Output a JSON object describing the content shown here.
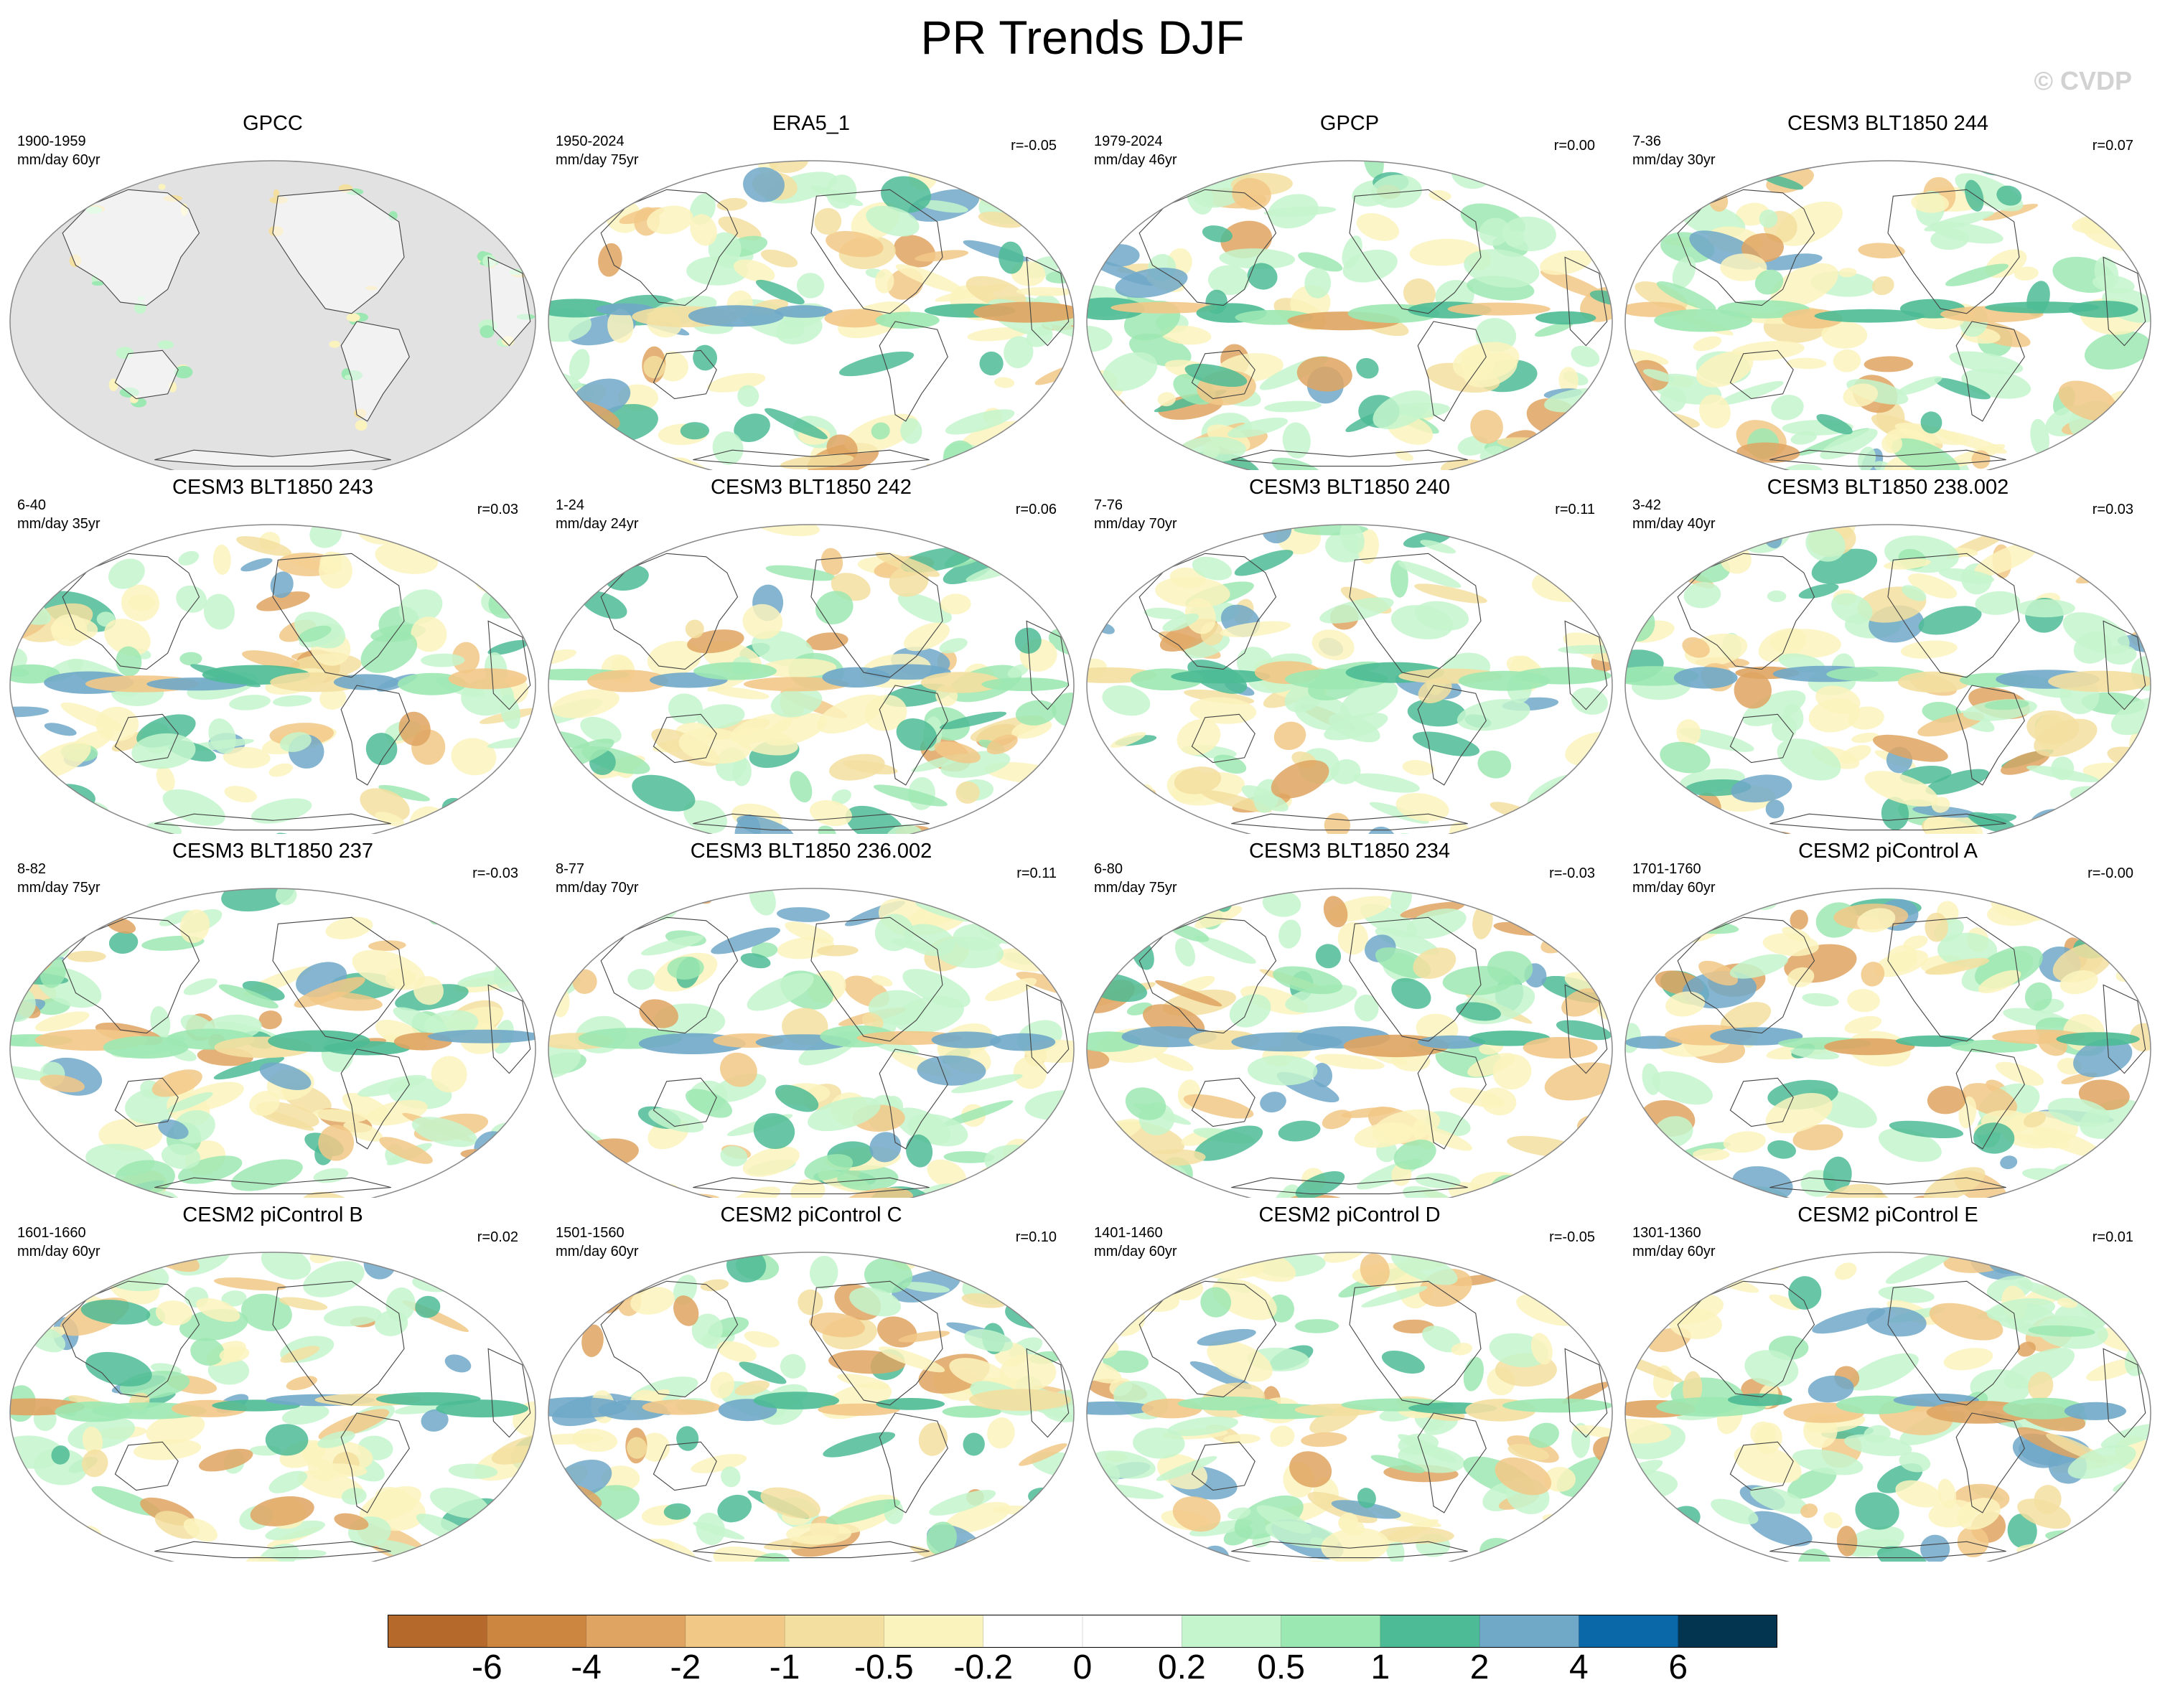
{
  "title": "PR Trends DJF",
  "watermark": "© CVDP",
  "panels": [
    {
      "title": "GPCC",
      "period": "1900-1959",
      "units": "mm/day 60yr",
      "corr": ""
    },
    {
      "title": "ERA5_1",
      "period": "1950-2024",
      "units": "mm/day 75yr",
      "corr": "r=-0.05"
    },
    {
      "title": "GPCP",
      "period": "1979-2024",
      "units": "mm/day 46yr",
      "corr": "r=0.00"
    },
    {
      "title": "CESM3 BLT1850 244",
      "period": "7-36",
      "units": "mm/day 30yr",
      "corr": "r=0.07"
    },
    {
      "title": "CESM3 BLT1850 243",
      "period": "6-40",
      "units": "mm/day 35yr",
      "corr": "r=0.03"
    },
    {
      "title": "CESM3 BLT1850 242",
      "period": "1-24",
      "units": "mm/day 24yr",
      "corr": "r=0.06"
    },
    {
      "title": "CESM3 BLT1850 240",
      "period": "7-76",
      "units": "mm/day 70yr",
      "corr": "r=0.11"
    },
    {
      "title": "CESM3 BLT1850 238.002",
      "period": "3-42",
      "units": "mm/day 40yr",
      "corr": "r=0.03"
    },
    {
      "title": "CESM3 BLT1850 237",
      "period": "8-82",
      "units": "mm/day 75yr",
      "corr": "r=-0.03"
    },
    {
      "title": "CESM3 BLT1850 236.002",
      "period": "8-77",
      "units": "mm/day 70yr",
      "corr": "r=0.11"
    },
    {
      "title": "CESM3 BLT1850 234",
      "period": "6-80",
      "units": "mm/day 75yr",
      "corr": "r=-0.03"
    },
    {
      "title": "CESM2 piControl A",
      "period": "1701-1760",
      "units": "mm/day 60yr",
      "corr": "r=-0.00"
    },
    {
      "title": "CESM2 piControl B",
      "period": "1601-1660",
      "units": "mm/day 60yr",
      "corr": "r=0.02"
    },
    {
      "title": "CESM2 piControl C",
      "period": "1501-1560",
      "units": "mm/day 60yr",
      "corr": "r=0.10"
    },
    {
      "title": "CESM2 piControl D",
      "period": "1401-1460",
      "units": "mm/day 60yr",
      "corr": "r=-0.05"
    },
    {
      "title": "CESM2 piControl E",
      "period": "1301-1360",
      "units": "mm/day 60yr",
      "corr": "r=0.01"
    }
  ],
  "colorbar": {
    "colors": [
      "#b5692a",
      "#cc8640",
      "#dfa462",
      "#f2c887",
      "#f3dfa0",
      "#fbf3bd",
      "#ffffff",
      "#ffffff",
      "#c4f5cc",
      "#9ce8b2",
      "#4dbb95",
      "#70a8c8",
      "#0b68a8",
      "#033550"
    ],
    "labels": [
      "-6",
      "-4",
      "-2",
      "-1",
      "-0.5",
      "-0.2",
      "0",
      "0.2",
      "0.5",
      "1",
      "2",
      "4",
      "6"
    ]
  },
  "colors": {
    "land_mask": "#e2e2e2",
    "coast": "#444444",
    "border": "#888888"
  }
}
